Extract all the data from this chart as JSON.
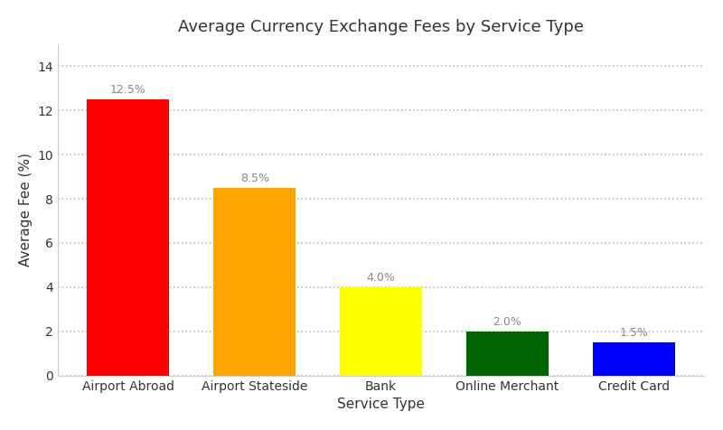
{
  "categories": [
    "Airport Abroad",
    "Airport Stateside",
    "Bank",
    "Online Merchant",
    "Credit Card"
  ],
  "values": [
    12.5,
    8.5,
    4.0,
    2.0,
    1.5
  ],
  "bar_colors": [
    "#ff0000",
    "#ffa500",
    "#ffff00",
    "#006400",
    "#0000ff"
  ],
  "bar_labels": [
    "12.5%",
    "8.5%",
    "4.0%",
    "2.0%",
    "1.5%"
  ],
  "title": "Average Currency Exchange Fees by Service Type",
  "xlabel": "Service Type",
  "ylabel": "Average Fee (%)",
  "ylim": [
    0,
    15
  ],
  "yticks": [
    0,
    2,
    4,
    6,
    8,
    10,
    12,
    14
  ],
  "title_fontsize": 13,
  "label_fontsize": 11,
  "tick_fontsize": 10,
  "annotation_fontsize": 9,
  "annotation_color": "#888888",
  "background_color": "#ffffff",
  "grid_color": "#bbbbbb",
  "grid_linestyle": ":",
  "grid_linewidth": 1.2,
  "bar_width": 0.65,
  "bar_edge_color": "none"
}
